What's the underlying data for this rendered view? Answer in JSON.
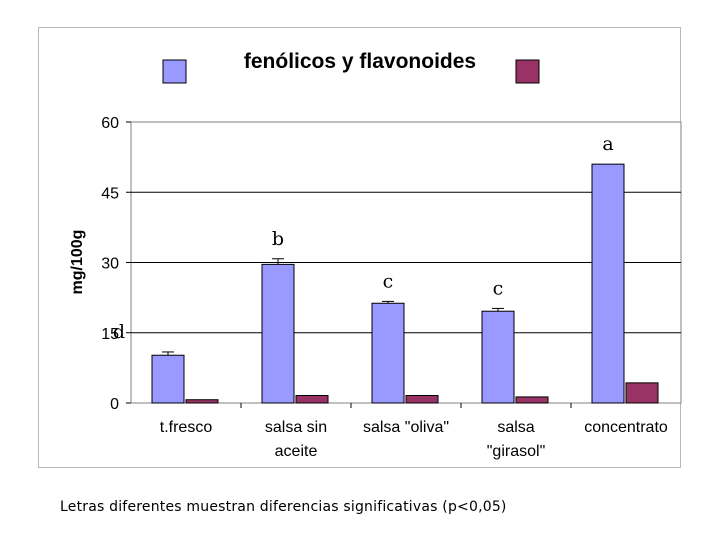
{
  "chart_data": {
    "type": "bar",
    "title": "fenólicos y flavonoides",
    "ylabel": "mg/100g",
    "xlabel": "",
    "ylim": [
      0,
      60
    ],
    "yticks": [
      0,
      15,
      30,
      45,
      60
    ],
    "grid": true,
    "legend_placement": "top, flanking title",
    "categories": [
      [
        "t.fresco"
      ],
      [
        "salsa sin",
        "aceite"
      ],
      [
        "salsa \"oliva\""
      ],
      [
        "salsa",
        "\"girasol\""
      ],
      [
        "concentrato"
      ]
    ],
    "series": [
      {
        "color": "#9999ff",
        "values": [
          10.2,
          29.6,
          21.3,
          19.6,
          51.0
        ],
        "errors": [
          0.7,
          1.2,
          0.4,
          0.6,
          0
        ]
      },
      {
        "color": "#993366",
        "values": [
          0.7,
          1.6,
          1.6,
          1.3,
          4.3
        ],
        "errors": [
          0,
          0,
          0,
          0,
          0
        ]
      }
    ],
    "significance_letters": [
      "d",
      "b",
      "c",
      "c",
      "a"
    ]
  },
  "footnote": "Letras diferentes muestran diferencias significativas (p<0,05)"
}
